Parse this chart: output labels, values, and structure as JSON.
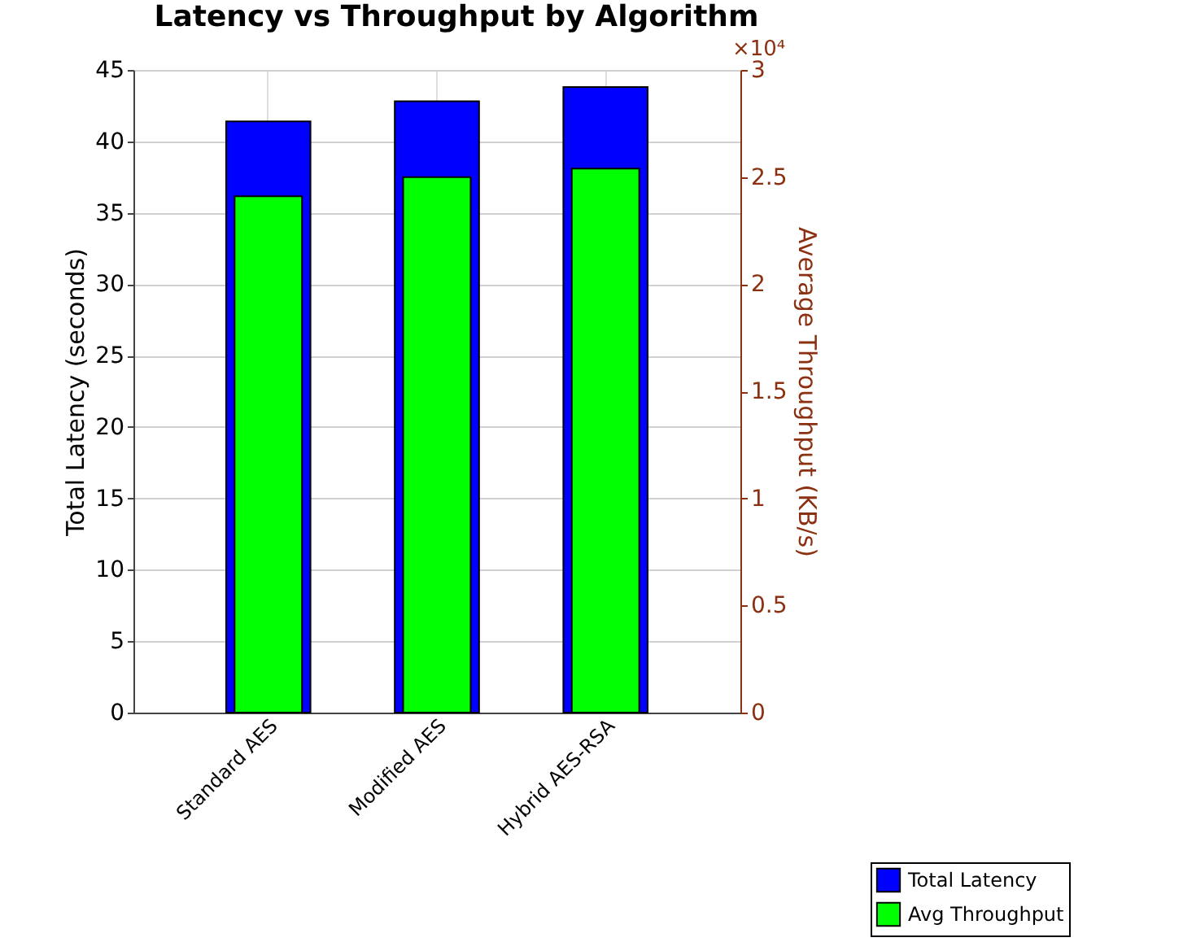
{
  "chart_data": {
    "type": "bar",
    "title": "Latency vs Throughput by Algorithm",
    "categories": [
      "Standard AES",
      "Modified AES",
      "Hybrid AES-RSA"
    ],
    "ylabel": "Total Latency (seconds)",
    "y2label": "Average Throughput (KB/s)",
    "series": [
      {
        "name": "Total Latency",
        "color": "#0000ff",
        "values": [
          41.4,
          42.8,
          43.8
        ]
      },
      {
        "name": "Avg Throughput",
        "color": "#00ff00",
        "axis": "y2",
        "values": [
          2.41,
          2.5,
          2.54
        ]
      }
    ],
    "ylim": [
      0,
      45
    ],
    "yticks": [
      0,
      5,
      10,
      15,
      20,
      25,
      30,
      35,
      40,
      45
    ],
    "y2lim": [
      0,
      3
    ],
    "y2ticks": [
      0,
      0.5,
      1,
      1.5,
      2,
      2.5,
      3
    ],
    "annotations": [
      "×10⁴"
    ],
    "grid": true,
    "legend": "bottom right"
  }
}
